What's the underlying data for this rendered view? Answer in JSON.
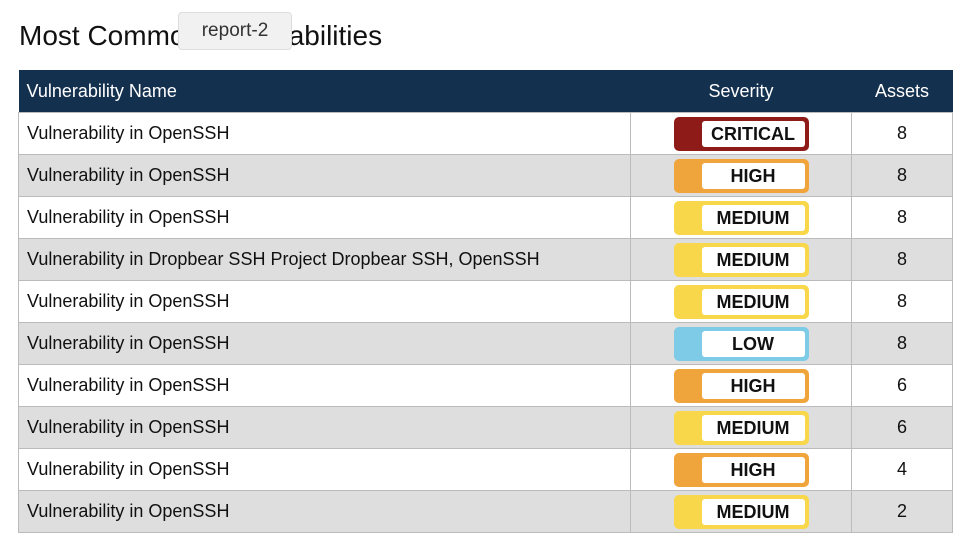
{
  "title": "Most Common Vulnerabilities",
  "tooltip": "report-2",
  "severity_colors": {
    "CRITICAL": "#8e1b17",
    "HIGH": "#f0a43c",
    "MEDIUM": "#f8d84a",
    "LOW": "#7dcbe6"
  },
  "table": {
    "headers": [
      "Vulnerability Name",
      "Severity",
      "Assets"
    ],
    "rows": [
      [
        "Vulnerability in OpenSSH",
        "CRITICAL",
        8
      ],
      [
        "Vulnerability in OpenSSH",
        "HIGH",
        8
      ],
      [
        "Vulnerability in OpenSSH",
        "MEDIUM",
        8
      ],
      [
        "Vulnerability in Dropbear SSH Project Dropbear SSH, OpenSSH",
        "MEDIUM",
        8
      ],
      [
        "Vulnerability in OpenSSH",
        "MEDIUM",
        8
      ],
      [
        "Vulnerability in OpenSSH",
        "LOW",
        8
      ],
      [
        "Vulnerability in OpenSSH",
        "HIGH",
        6
      ],
      [
        "Vulnerability in OpenSSH",
        "MEDIUM",
        6
      ],
      [
        "Vulnerability in OpenSSH",
        "HIGH",
        4
      ],
      [
        "Vulnerability in OpenSSH",
        "MEDIUM",
        2
      ]
    ]
  }
}
